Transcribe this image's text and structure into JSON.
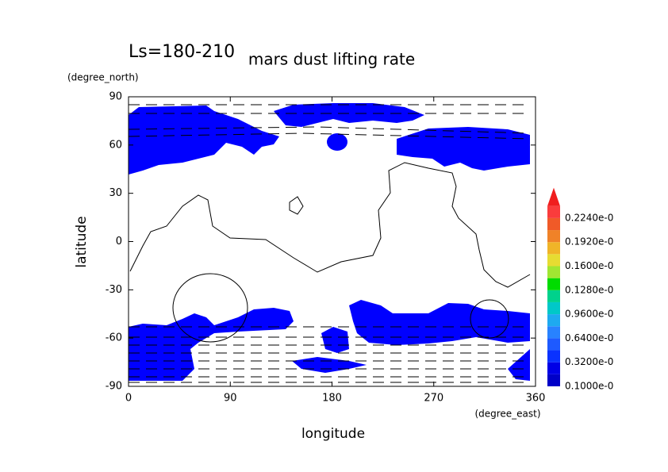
{
  "chart_data": {
    "type": "contour",
    "title": "mars dust lifting rate",
    "subtitle": "Ls=180-210",
    "x_label": "longitude",
    "y_label": "latitude",
    "x_unit": "(degree_east)",
    "y_unit": "(degree_north)",
    "xlim": [
      0,
      360
    ],
    "ylim": [
      -90,
      90
    ],
    "xticks": [
      0,
      90,
      180,
      270,
      360
    ],
    "yticks": [
      90,
      60,
      30,
      0,
      -30,
      -60,
      -90
    ],
    "colorbar_labels": [
      "0.1000e-0",
      "0.3200e-0",
      "0.6400e-0",
      "0.9600e-0",
      "0.1280e-0",
      "0.1600e-0",
      "0.1920e-0",
      "0.2240e-0"
    ],
    "colorbar_colors": [
      "#0000c8",
      "#0000e6",
      "#0a32ff",
      "#1e5aff",
      "#2882ff",
      "#1eaaf0",
      "#00c8c8",
      "#00d28c",
      "#00dc00",
      "#a0e632",
      "#e6dc32",
      "#f0b428",
      "#f08228",
      "#f05a28",
      "#fa3c3c",
      "#f01e1e"
    ]
  }
}
